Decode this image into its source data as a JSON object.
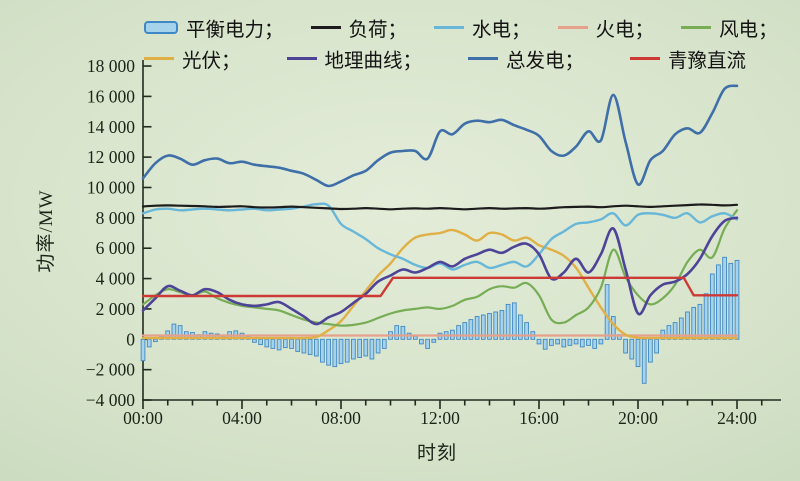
{
  "figure": {
    "y_axis_title": "功率/MW",
    "x_axis_title": "时刻",
    "unit": "MW",
    "y_tick_labels": [
      "18 000",
      "16 000",
      "14 000",
      "12 000",
      "10 000",
      "8 000",
      "6 000",
      "4 000",
      "2 000",
      "0",
      "−2 000",
      "−4 000"
    ],
    "y_tick_values": [
      18000,
      16000,
      14000,
      12000,
      10000,
      8000,
      6000,
      4000,
      2000,
      0,
      -2000,
      -4000
    ],
    "x_tick_labels": [
      "00:00",
      "04:00",
      "08:00",
      "12:00",
      "16:00",
      "20:00",
      "24:00"
    ],
    "x_tick_hours": [
      0,
      4,
      8,
      12,
      16,
      20,
      24
    ]
  },
  "colors": {
    "balance_fill": "#a6d3ec",
    "balance_stroke": "#3f88c5",
    "load": "#1c1c1c",
    "hydro": "#68b7d9",
    "thermal": "#e5a18c",
    "wind": "#76ad55",
    "pv": "#e0af45",
    "dispatch": "#4d4397",
    "total": "#3f6fa8",
    "dc": "#cd3a36",
    "axis": "#222a1e"
  },
  "legend": {
    "rows": [
      [
        {
          "series": "balance",
          "swatch": "bar",
          "label": "平衡电力；"
        },
        {
          "series": "load",
          "swatch": "line",
          "label": "负荷；"
        },
        {
          "series": "hydro",
          "swatch": "line",
          "label": "水电；"
        },
        {
          "series": "thermal",
          "swatch": "line",
          "label": "火电；"
        },
        {
          "series": "wind",
          "swatch": "line",
          "label": "风电；"
        }
      ],
      [
        {
          "series": "pv",
          "swatch": "line",
          "label": "光伏；"
        },
        {
          "series": "dispatch",
          "swatch": "line",
          "label": "地理曲线；"
        },
        {
          "series": "total",
          "swatch": "line",
          "label": "总发电；"
        },
        {
          "series": "dc",
          "swatch": "line",
          "label": "青豫直流"
        }
      ]
    ]
  },
  "chart_data": {
    "type": "bar+line combo",
    "title": "",
    "xlabel": "时刻",
    "ylabel": "功率/MW",
    "xlim_hours": [
      0,
      24
    ],
    "ylim": [
      -4000,
      18000
    ],
    "grid": false,
    "legend_position": "top",
    "bar_series": {
      "id": "balance",
      "name": "平衡电力",
      "x_start_hours": 0,
      "x_step_hours": 0.25,
      "values_mw": [
        -1400,
        -500,
        -150,
        200,
        550,
        1000,
        900,
        500,
        450,
        300,
        500,
        400,
        350,
        200,
        500,
        550,
        400,
        200,
        -200,
        -350,
        -500,
        -600,
        -700,
        -550,
        -600,
        -800,
        -900,
        -1000,
        -1100,
        -1500,
        -1700,
        -1800,
        -1600,
        -1500,
        -1300,
        -1200,
        -1100,
        -1300,
        -900,
        -600,
        500,
        900,
        850,
        400,
        200,
        -300,
        -600,
        -200,
        400,
        500,
        600,
        900,
        1100,
        1300,
        1500,
        1600,
        1700,
        1800,
        1900,
        2300,
        2400,
        1600,
        1100,
        500,
        -300,
        -650,
        -400,
        -300,
        -500,
        -400,
        -300,
        -500,
        -400,
        -600,
        -300,
        3600,
        1500,
        300,
        -900,
        -1300,
        -1800,
        -2900,
        -1500,
        -900,
        600,
        900,
        1100,
        1400,
        1800,
        2100,
        2300,
        3000,
        4300,
        4900,
        5400,
        5000,
        5200
      ]
    },
    "line_series": [
      {
        "id": "thermal",
        "name": "火电",
        "x_start_hours": 0,
        "x_step_hours": 0.5,
        "width": 2.2,
        "values_mw": [
          250,
          250,
          250,
          250,
          250,
          250,
          250,
          250,
          250,
          250,
          250,
          250,
          250,
          250,
          250,
          250,
          250,
          250,
          250,
          250,
          250,
          250,
          250,
          250,
          250,
          250,
          250,
          250,
          250,
          250,
          250,
          250,
          250,
          250,
          250,
          250,
          250,
          250,
          250,
          250,
          250,
          250,
          250,
          250,
          250,
          250,
          250,
          250,
          250
        ]
      },
      {
        "id": "pv",
        "name": "光伏",
        "x_start_hours": 0,
        "x_step_hours": 0.5,
        "width": 2.4,
        "values_mw": [
          80,
          80,
          80,
          80,
          80,
          80,
          80,
          80,
          80,
          80,
          80,
          80,
          80,
          80,
          150,
          600,
          1200,
          2200,
          3200,
          4200,
          5000,
          6000,
          6700,
          6900,
          7000,
          7200,
          6900,
          6500,
          7000,
          6900,
          6500,
          6700,
          6200,
          5900,
          5500,
          4700,
          3400,
          2100,
          1000,
          300,
          100,
          80,
          80,
          80,
          80,
          80,
          80,
          80,
          80
        ]
      },
      {
        "id": "wind",
        "name": "风电",
        "x_start_hours": 0,
        "x_step_hours": 0.5,
        "width": 2.2,
        "values_mw": [
          2300,
          2900,
          3300,
          3100,
          2900,
          3150,
          2700,
          2400,
          2200,
          2100,
          2000,
          1900,
          1600,
          1300,
          1100,
          1000,
          900,
          950,
          1100,
          1400,
          1700,
          1900,
          2000,
          2100,
          2000,
          2200,
          2600,
          2800,
          3300,
          3500,
          3400,
          3700,
          2900,
          1300,
          1100,
          1600,
          2100,
          3400,
          5900,
          4100,
          2900,
          2300,
          2700,
          3600,
          5100,
          5900,
          5400,
          7300,
          8500
        ]
      },
      {
        "id": "hydro",
        "name": "水电",
        "x_start_hours": 0,
        "x_step_hours": 0.5,
        "width": 2.4,
        "values_mw": [
          8300,
          8550,
          8600,
          8500,
          8550,
          8600,
          8550,
          8500,
          8550,
          8600,
          8500,
          8550,
          8600,
          8750,
          8900,
          8800,
          7600,
          7100,
          6600,
          6000,
          5600,
          5300,
          4900,
          4700,
          5000,
          4600,
          4900,
          5100,
          4700,
          4900,
          5100,
          4800,
          5600,
          6600,
          7100,
          7600,
          7700,
          7900,
          8300,
          7500,
          8200,
          8300,
          8200,
          8000,
          8300,
          7700,
          8100,
          8300,
          7900
        ]
      },
      {
        "id": "load",
        "name": "负荷",
        "x_start_hours": 0,
        "x_step_hours": 0.5,
        "width": 2.2,
        "values_mw": [
          8750,
          8800,
          8820,
          8800,
          8780,
          8760,
          8720,
          8740,
          8760,
          8700,
          8680,
          8700,
          8740,
          8700,
          8660,
          8620,
          8580,
          8600,
          8640,
          8600,
          8560,
          8600,
          8620,
          8600,
          8640,
          8600,
          8560,
          8600,
          8640,
          8600,
          8620,
          8640,
          8600,
          8640,
          8700,
          8720,
          8740,
          8700,
          8760,
          8800,
          8760,
          8720,
          8760,
          8800,
          8840,
          8880,
          8860,
          8820,
          8860
        ]
      },
      {
        "id": "dispatch",
        "name": "地理曲线",
        "x_start_hours": 0,
        "x_step_hours": 0.5,
        "width": 2.6,
        "values_mw": [
          1900,
          2700,
          3500,
          3200,
          2900,
          3300,
          3100,
          2600,
          2300,
          2200,
          2300,
          2450,
          2000,
          1500,
          1000,
          1450,
          1800,
          2400,
          3000,
          3800,
          4200,
          4600,
          4400,
          4700,
          5100,
          4800,
          5300,
          5600,
          5900,
          5700,
          6100,
          6300,
          5600,
          4000,
          4400,
          5300,
          4400,
          5600,
          7300,
          4600,
          1700,
          2900,
          3600,
          3800,
          4300,
          5300,
          6800,
          7800,
          8000
        ]
      },
      {
        "id": "total",
        "name": "总发电",
        "x_start_hours": 0,
        "x_step_hours": 0.5,
        "width": 2.6,
        "values_mw": [
          10600,
          11600,
          12100,
          11900,
          11500,
          11800,
          11900,
          11600,
          11700,
          11500,
          11400,
          11300,
          11100,
          10900,
          10500,
          10100,
          10400,
          10800,
          11100,
          11800,
          12300,
          12400,
          12400,
          11900,
          13700,
          13500,
          14200,
          14400,
          14300,
          14450,
          14100,
          13800,
          13400,
          12400,
          12100,
          12700,
          13700,
          13100,
          16100,
          13000,
          10200,
          11800,
          12400,
          13500,
          13900,
          13600,
          14900,
          16500,
          16700
        ]
      },
      {
        "id": "dc",
        "name": "青豫直流",
        "smooth": false,
        "width": 2.4,
        "x_hours": [
          0,
          9.6,
          10.1,
          21.85,
          22.25,
          24
        ],
        "values_mw": [
          2850,
          2850,
          4050,
          4050,
          2900,
          2900
        ]
      }
    ]
  }
}
